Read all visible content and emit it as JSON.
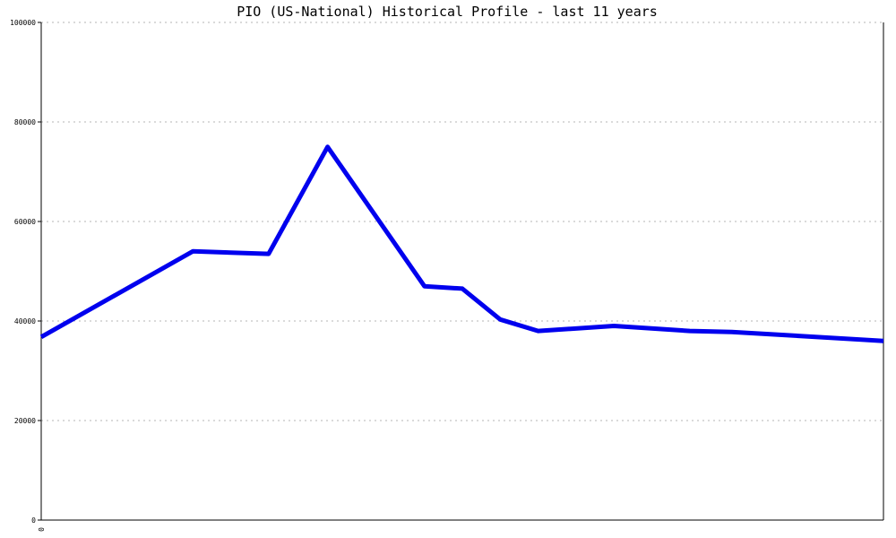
{
  "chart_data": {
    "type": "line",
    "title": "PIO (US-National) Historical Profile - last 11 years",
    "xlabel": "",
    "ylabel": "",
    "ylim": [
      0,
      100000
    ],
    "y_ticks": [
      0,
      20000,
      40000,
      60000,
      80000,
      100000
    ],
    "y_tick_labels": [
      "0",
      "20000",
      "40000",
      "60000",
      "80000",
      "100000"
    ],
    "x_tick_labels": [
      "0"
    ],
    "grid": true,
    "legend": "none",
    "series": [
      {
        "color": "#0000ee",
        "points": [
          {
            "x": 0,
            "y": 36800
          },
          {
            "x": 0.18,
            "y": 54000
          },
          {
            "x": 0.27,
            "y": 53500
          },
          {
            "x": 0.34,
            "y": 75000
          },
          {
            "x": 0.455,
            "y": 47000
          },
          {
            "x": 0.5,
            "y": 46500
          },
          {
            "x": 0.545,
            "y": 40300
          },
          {
            "x": 0.59,
            "y": 38000
          },
          {
            "x": 0.68,
            "y": 39000
          },
          {
            "x": 0.77,
            "y": 38000
          },
          {
            "x": 0.82,
            "y": 37800
          },
          {
            "x": 1.0,
            "y": 36000
          }
        ]
      }
    ]
  }
}
